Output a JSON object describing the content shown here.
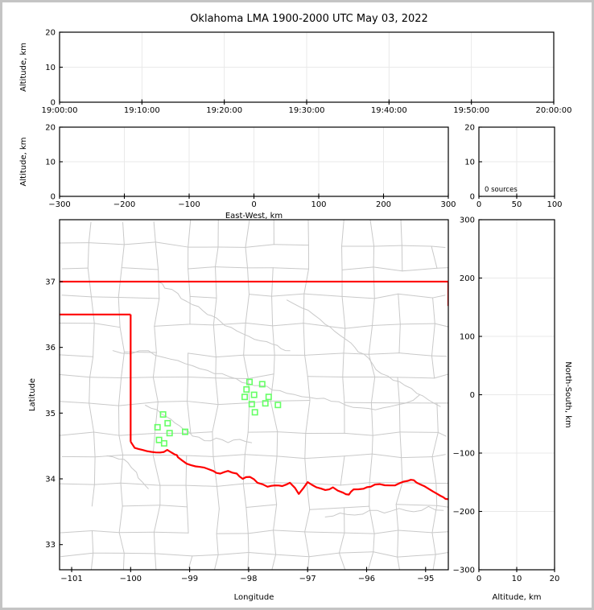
{
  "title": "Oklahoma LMA 1900-2000 UTC May 03, 2022",
  "colors": {
    "axis": "#000000",
    "grid": "#e9e9e9",
    "county": "#c9c9c9",
    "river": "#c9c9c9",
    "state_border": "#ff0000",
    "marker": "#66ff66",
    "frame": "#c4c4c4",
    "text": "#000000"
  },
  "chart_data": [
    {
      "id": "time-height",
      "type": "scatter",
      "xlabel": "",
      "ylabel": "Altitude, km",
      "xlim": [
        0,
        60
      ],
      "ylim": [
        0,
        20
      ],
      "xticks": [
        {
          "v": 0,
          "t": "19:00:00"
        },
        {
          "v": 10,
          "t": "19:10:00"
        },
        {
          "v": 20,
          "t": "19:20:00"
        },
        {
          "v": 30,
          "t": "19:30:00"
        },
        {
          "v": 40,
          "t": "19:40:00"
        },
        {
          "v": 50,
          "t": "19:50:00"
        },
        {
          "v": 60,
          "t": "20:00:00"
        }
      ],
      "yticks": [
        {
          "v": 0,
          "t": "0"
        },
        {
          "v": 10,
          "t": "10"
        },
        {
          "v": 20,
          "t": "20"
        }
      ],
      "grid": true,
      "points": []
    },
    {
      "id": "ew-height",
      "type": "scatter",
      "xlabel": "East-West, km",
      "ylabel": "Altitude, km",
      "xlim": [
        -300,
        300
      ],
      "ylim": [
        0,
        20
      ],
      "xticks": [
        {
          "v": -300,
          "t": "−300"
        },
        {
          "v": -200,
          "t": "−200"
        },
        {
          "v": -100,
          "t": "−100"
        },
        {
          "v": 0,
          "t": "0"
        },
        {
          "v": 100,
          "t": "100"
        },
        {
          "v": 200,
          "t": "200"
        },
        {
          "v": 300,
          "t": "300"
        }
      ],
      "yticks": [
        {
          "v": 0,
          "t": "0"
        },
        {
          "v": 10,
          "t": "10"
        },
        {
          "v": 20,
          "t": "20"
        }
      ],
      "grid": true,
      "points": []
    },
    {
      "id": "alt-histogram",
      "type": "line",
      "xlabel": "",
      "ylabel": "",
      "annotation": "0 sources",
      "xlim": [
        0,
        100
      ],
      "ylim": [
        0,
        20
      ],
      "xticks": [
        {
          "v": 0,
          "t": "0"
        },
        {
          "v": 50,
          "t": "50"
        },
        {
          "v": 100,
          "t": "100"
        }
      ],
      "yticks": [
        {
          "v": 0,
          "t": "0"
        },
        {
          "v": 10,
          "t": "10"
        },
        {
          "v": 20,
          "t": "20"
        }
      ],
      "grid": true,
      "points": []
    },
    {
      "id": "plan-view",
      "type": "scatter",
      "xlabel": "Longitude",
      "ylabel": "Latitude",
      "xlim": [
        -101.205,
        -94.615
      ],
      "ylim": [
        32.617,
        37.942
      ],
      "xticks": [
        {
          "v": -101,
          "t": "−101"
        },
        {
          "v": -100,
          "t": "−100"
        },
        {
          "v": -99,
          "t": "−99"
        },
        {
          "v": -98,
          "t": "−98"
        },
        {
          "v": -97,
          "t": "−97"
        },
        {
          "v": -96,
          "t": "−96"
        },
        {
          "v": -95,
          "t": "−95"
        }
      ],
      "yticks": [
        {
          "v": 33,
          "t": "33"
        },
        {
          "v": 34,
          "t": "34"
        },
        {
          "v": 35,
          "t": "35"
        },
        {
          "v": 36,
          "t": "36"
        },
        {
          "v": 37,
          "t": "37"
        }
      ],
      "grid": false,
      "marker_style": {
        "shape": "square",
        "size": 6.4,
        "color": "#66ff66"
      },
      "markers": [
        [
          -97.985,
          35.474
        ],
        [
          -97.77,
          35.44
        ],
        [
          -98.035,
          35.36
        ],
        [
          -97.907,
          35.278
        ],
        [
          -98.067,
          35.246
        ],
        [
          -97.66,
          35.246
        ],
        [
          -97.947,
          35.136
        ],
        [
          -97.716,
          35.148
        ],
        [
          -97.503,
          35.124
        ],
        [
          -97.893,
          35.013
        ],
        [
          -99.45,
          34.98
        ],
        [
          -99.373,
          34.846
        ],
        [
          -99.545,
          34.785
        ],
        [
          -99.34,
          34.695
        ],
        [
          -99.077,
          34.715
        ],
        [
          -99.518,
          34.592
        ],
        [
          -99.432,
          34.54
        ]
      ],
      "state_borders": [
        [
          [
            -101.205,
            37.0
          ],
          [
            -94.615,
            37.0
          ]
        ],
        [
          [
            -94.615,
            37.0
          ],
          [
            -94.615,
            36.63
          ]
        ],
        [
          [
            -101.205,
            36.5
          ],
          [
            -100.0,
            36.5
          ]
        ],
        [
          [
            -100.0,
            36.5
          ],
          [
            -100.0,
            34.565
          ]
        ],
        [
          [
            -100.0,
            34.565
          ],
          [
            -99.93,
            34.47
          ],
          [
            -99.8,
            34.44
          ],
          [
            -99.65,
            34.41
          ],
          [
            -99.5,
            34.4
          ],
          [
            -99.38,
            34.44
          ],
          [
            -99.25,
            34.37
          ],
          [
            -99.2,
            34.33
          ],
          [
            -99.05,
            34.23
          ],
          [
            -98.9,
            34.19
          ],
          [
            -98.75,
            34.17
          ],
          [
            -98.6,
            34.12
          ],
          [
            -98.48,
            34.08
          ],
          [
            -98.35,
            34.12
          ],
          [
            -98.2,
            34.08
          ],
          [
            -98.1,
            34.0
          ],
          [
            -97.98,
            34.03
          ],
          [
            -97.85,
            33.94
          ],
          [
            -97.68,
            33.88
          ],
          [
            -97.55,
            33.9
          ],
          [
            -97.43,
            33.89
          ],
          [
            -97.3,
            33.94
          ],
          [
            -97.15,
            33.77
          ],
          [
            -97.0,
            33.95
          ],
          [
            -96.85,
            33.87
          ],
          [
            -96.7,
            33.83
          ],
          [
            -96.57,
            33.87
          ],
          [
            -96.4,
            33.79
          ],
          [
            -96.3,
            33.76
          ],
          [
            -96.22,
            33.84
          ],
          [
            -96.05,
            33.85
          ],
          [
            -95.93,
            33.88
          ],
          [
            -95.78,
            33.92
          ],
          [
            -95.6,
            33.9
          ],
          [
            -95.45,
            33.93
          ],
          [
            -95.3,
            33.97
          ],
          [
            -95.2,
            33.98
          ],
          [
            -95.1,
            33.92
          ],
          [
            -94.95,
            33.85
          ],
          [
            -94.8,
            33.77
          ],
          [
            -94.7,
            33.72
          ],
          [
            -94.615,
            33.69
          ]
        ]
      ],
      "rivers": [
        [
          [
            -99.55,
            37.0
          ],
          [
            -99.42,
            36.9
          ],
          [
            -99.2,
            36.82
          ],
          [
            -99.05,
            36.7
          ],
          [
            -98.85,
            36.62
          ],
          [
            -98.7,
            36.5
          ],
          [
            -98.55,
            36.45
          ],
          [
            -98.4,
            36.33
          ],
          [
            -98.2,
            36.25
          ],
          [
            -98.0,
            36.17
          ],
          [
            -97.8,
            36.1
          ],
          [
            -97.6,
            36.05
          ],
          [
            -97.45,
            35.98
          ],
          [
            -97.3,
            35.95
          ]
        ],
        [
          [
            -97.35,
            36.72
          ],
          [
            -97.1,
            36.6
          ],
          [
            -96.9,
            36.5
          ],
          [
            -96.7,
            36.35
          ],
          [
            -96.55,
            36.25
          ],
          [
            -96.35,
            36.12
          ],
          [
            -96.2,
            36.0
          ],
          [
            -96.05,
            35.9
          ],
          [
            -95.9,
            35.75
          ],
          [
            -95.75,
            35.6
          ],
          [
            -95.55,
            35.5
          ],
          [
            -95.35,
            35.42
          ],
          [
            -95.15,
            35.3
          ],
          [
            -94.95,
            35.2
          ],
          [
            -94.75,
            35.1
          ]
        ],
        [
          [
            -100.3,
            35.95
          ],
          [
            -100.0,
            35.9
          ],
          [
            -99.7,
            35.95
          ],
          [
            -99.45,
            35.85
          ],
          [
            -99.2,
            35.8
          ],
          [
            -98.95,
            35.72
          ],
          [
            -98.7,
            35.65
          ],
          [
            -98.45,
            35.6
          ],
          [
            -98.2,
            35.52
          ],
          [
            -98.0,
            35.45
          ],
          [
            -97.8,
            35.42
          ],
          [
            -97.6,
            35.35
          ],
          [
            -97.35,
            35.3
          ],
          [
            -97.1,
            35.25
          ],
          [
            -96.85,
            35.22
          ],
          [
            -96.6,
            35.18
          ],
          [
            -96.35,
            35.12
          ],
          [
            -96.1,
            35.08
          ],
          [
            -95.85,
            35.05
          ],
          [
            -95.6,
            35.1
          ],
          [
            -95.35,
            35.15
          ],
          [
            -95.1,
            35.28
          ]
        ],
        [
          [
            -99.75,
            35.12
          ],
          [
            -99.55,
            35.05
          ],
          [
            -99.4,
            34.95
          ],
          [
            -99.25,
            34.85
          ],
          [
            -99.1,
            34.75
          ],
          [
            -98.95,
            34.65
          ],
          [
            -98.75,
            34.58
          ],
          [
            -98.55,
            34.62
          ],
          [
            -98.35,
            34.55
          ],
          [
            -98.15,
            34.6
          ],
          [
            -97.95,
            34.55
          ]
        ],
        [
          [
            -100.4,
            34.35
          ],
          [
            -100.2,
            34.3
          ],
          [
            -100.05,
            34.25
          ],
          [
            -99.9,
            34.1
          ],
          [
            -99.8,
            33.95
          ],
          [
            -99.7,
            33.85
          ]
        ],
        [
          [
            -96.7,
            33.42
          ],
          [
            -96.45,
            33.48
          ],
          [
            -96.2,
            33.45
          ],
          [
            -95.95,
            33.52
          ],
          [
            -95.7,
            33.48
          ],
          [
            -95.45,
            33.55
          ],
          [
            -95.2,
            33.5
          ],
          [
            -94.95,
            33.58
          ],
          [
            -94.7,
            33.52
          ]
        ]
      ]
    },
    {
      "id": "ns-height",
      "type": "scatter",
      "xlabel": "Altitude, km",
      "ylabel": "North-South, km",
      "ylabel_side": "right",
      "xlim": [
        0,
        20
      ],
      "ylim": [
        -300,
        300
      ],
      "xticks": [
        {
          "v": 0,
          "t": "0"
        },
        {
          "v": 10,
          "t": "10"
        },
        {
          "v": 20,
          "t": "20"
        }
      ],
      "yticks": [
        {
          "v": 300,
          "t": "300"
        },
        {
          "v": 200,
          "t": "200"
        },
        {
          "v": 100,
          "t": "100"
        },
        {
          "v": 0,
          "t": "0"
        },
        {
          "v": -100,
          "t": "−100"
        },
        {
          "v": -200,
          "t": "−200"
        },
        {
          "v": -300,
          "t": "−300"
        }
      ],
      "grid": true,
      "points": []
    }
  ]
}
